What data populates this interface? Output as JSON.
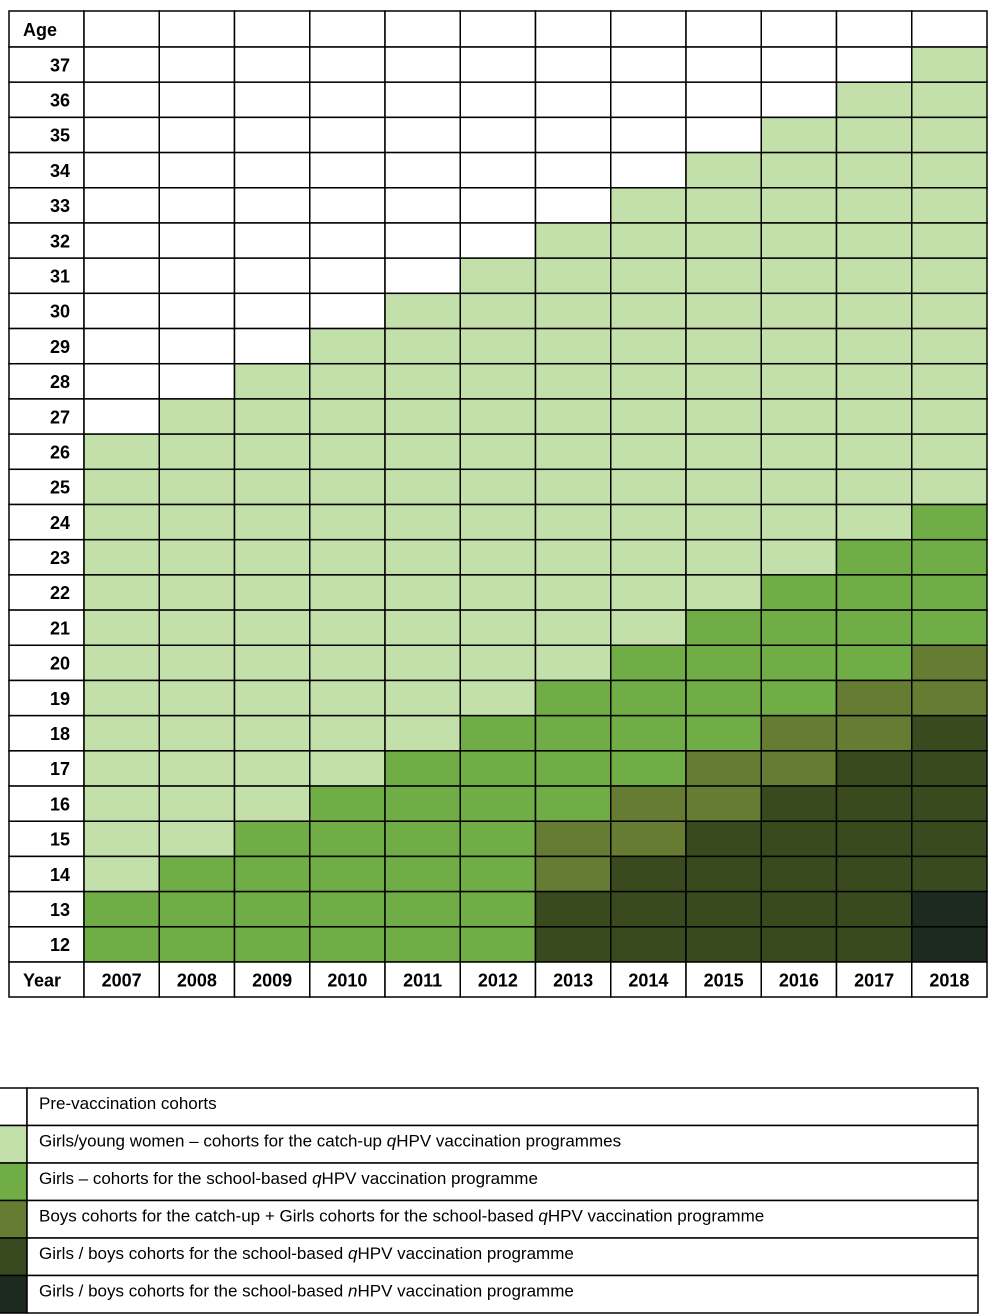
{
  "table": {
    "row_header": "Age",
    "column_header": "Year",
    "ages": [
      37,
      36,
      35,
      34,
      33,
      32,
      31,
      30,
      29,
      28,
      27,
      26,
      25,
      24,
      23,
      22,
      21,
      20,
      19,
      18,
      17,
      16,
      15,
      14,
      13,
      12
    ],
    "years": [
      2007,
      2008,
      2009,
      2010,
      2011,
      2012,
      2013,
      2014,
      2015,
      2016,
      2017,
      2018
    ],
    "cells": [
      [
        0,
        0,
        0,
        0,
        0,
        0,
        0,
        0,
        0,
        0,
        0,
        1
      ],
      [
        0,
        0,
        0,
        0,
        0,
        0,
        0,
        0,
        0,
        0,
        1,
        1
      ],
      [
        0,
        0,
        0,
        0,
        0,
        0,
        0,
        0,
        0,
        1,
        1,
        1
      ],
      [
        0,
        0,
        0,
        0,
        0,
        0,
        0,
        0,
        1,
        1,
        1,
        1
      ],
      [
        0,
        0,
        0,
        0,
        0,
        0,
        0,
        1,
        1,
        1,
        1,
        1
      ],
      [
        0,
        0,
        0,
        0,
        0,
        0,
        1,
        1,
        1,
        1,
        1,
        1
      ],
      [
        0,
        0,
        0,
        0,
        0,
        1,
        1,
        1,
        1,
        1,
        1,
        1
      ],
      [
        0,
        0,
        0,
        0,
        1,
        1,
        1,
        1,
        1,
        1,
        1,
        1
      ],
      [
        0,
        0,
        0,
        1,
        1,
        1,
        1,
        1,
        1,
        1,
        1,
        1
      ],
      [
        0,
        0,
        1,
        1,
        1,
        1,
        1,
        1,
        1,
        1,
        1,
        1
      ],
      [
        0,
        1,
        1,
        1,
        1,
        1,
        1,
        1,
        1,
        1,
        1,
        1
      ],
      [
        1,
        1,
        1,
        1,
        1,
        1,
        1,
        1,
        1,
        1,
        1,
        1
      ],
      [
        1,
        1,
        1,
        1,
        1,
        1,
        1,
        1,
        1,
        1,
        1,
        1
      ],
      [
        1,
        1,
        1,
        1,
        1,
        1,
        1,
        1,
        1,
        1,
        1,
        2
      ],
      [
        1,
        1,
        1,
        1,
        1,
        1,
        1,
        1,
        1,
        1,
        2,
        2
      ],
      [
        1,
        1,
        1,
        1,
        1,
        1,
        1,
        1,
        1,
        2,
        2,
        2
      ],
      [
        1,
        1,
        1,
        1,
        1,
        1,
        1,
        1,
        2,
        2,
        2,
        2
      ],
      [
        1,
        1,
        1,
        1,
        1,
        1,
        1,
        2,
        2,
        2,
        2,
        3
      ],
      [
        1,
        1,
        1,
        1,
        1,
        1,
        2,
        2,
        2,
        2,
        3,
        3
      ],
      [
        1,
        1,
        1,
        1,
        1,
        2,
        2,
        2,
        2,
        3,
        3,
        4
      ],
      [
        1,
        1,
        1,
        1,
        2,
        2,
        2,
        2,
        3,
        3,
        4,
        4
      ],
      [
        1,
        1,
        1,
        2,
        2,
        2,
        2,
        3,
        3,
        4,
        4,
        4
      ],
      [
        1,
        1,
        2,
        2,
        2,
        2,
        3,
        3,
        4,
        4,
        4,
        4
      ],
      [
        1,
        2,
        2,
        2,
        2,
        2,
        3,
        4,
        4,
        4,
        4,
        4
      ],
      [
        2,
        2,
        2,
        2,
        2,
        2,
        4,
        4,
        4,
        4,
        4,
        5
      ],
      [
        2,
        2,
        2,
        2,
        2,
        2,
        4,
        4,
        4,
        4,
        4,
        5
      ]
    ]
  },
  "legend": [
    {
      "color": "#ffffff",
      "parts": [
        {
          "text": "Pre-vaccination cohorts",
          "italic": false
        }
      ]
    },
    {
      "color": "#c3dfaa",
      "parts": [
        {
          "text": "Girls/young women – cohorts for the catch-up ",
          "italic": false
        },
        {
          "text": "q",
          "italic": true
        },
        {
          "text": "HPV vaccination programmes",
          "italic": false
        }
      ]
    },
    {
      "color": "#70ad47",
      "parts": [
        {
          "text": "Girls – cohorts for the school-based ",
          "italic": false
        },
        {
          "text": "q",
          "italic": true
        },
        {
          "text": "HPV vaccination programme",
          "italic": false
        }
      ]
    },
    {
      "color": "#667c33",
      "parts": [
        {
          "text": "Boys cohorts for the catch-up + Girls cohorts for the school-based ",
          "italic": false
        },
        {
          "text": "q",
          "italic": true
        },
        {
          "text": "HPV vaccination programme",
          "italic": false
        }
      ]
    },
    {
      "color": "#384a1e",
      "parts": [
        {
          "text": "Girls / boys cohorts for the school-based ",
          "italic": false
        },
        {
          "text": "q",
          "italic": true
        },
        {
          "text": "HPV vaccination programme",
          "italic": false
        }
      ]
    },
    {
      "color": "#1d2a1f",
      "parts": [
        {
          "text": "Girls / boys cohorts for the school-based ",
          "italic": false
        },
        {
          "text": "n",
          "italic": true
        },
        {
          "text": "HPV vaccination programme",
          "italic": false
        }
      ]
    }
  ]
}
